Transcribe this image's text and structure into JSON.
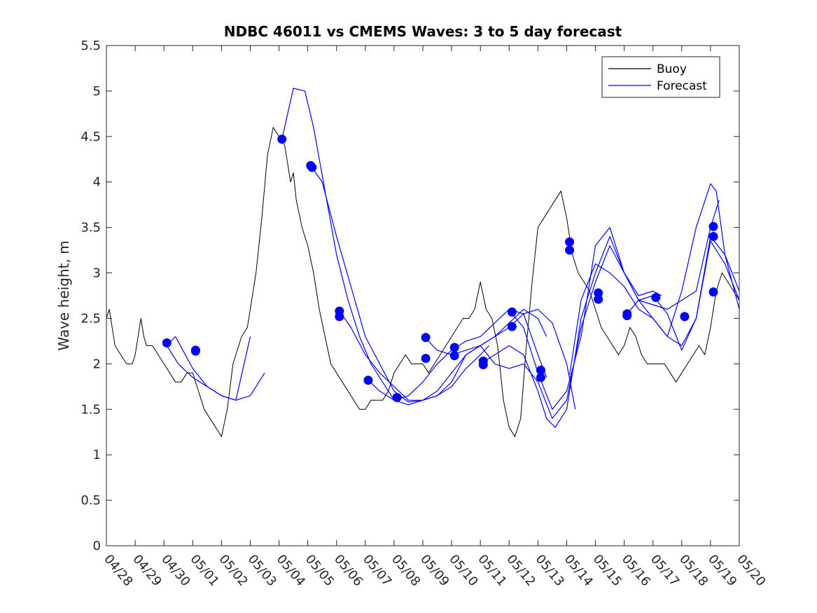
{
  "chart_data": {
    "type": "line",
    "title": "NDBC 46011 vs CMEMS Waves: 3 to 5 day forecast",
    "xlabel": "",
    "ylabel": "Wave height, m",
    "xlim": [
      "04/28",
      "05/20"
    ],
    "ylim": [
      0,
      5.5
    ],
    "x_tick_labels": [
      "04/28",
      "04/29",
      "04/30",
      "05/01",
      "05/02",
      "05/03",
      "05/04",
      "05/05",
      "05/06",
      "05/07",
      "05/08",
      "05/09",
      "05/10",
      "05/11",
      "05/12",
      "05/13",
      "05/14",
      "05/15",
      "05/16",
      "05/17",
      "05/18",
      "05/19",
      "05/20"
    ],
    "y_ticks": [
      0,
      0.5,
      1,
      1.5,
      2,
      2.5,
      3,
      3.5,
      4,
      4.5,
      5,
      5.5
    ],
    "y_tick_labels": [
      "0",
      "0.5",
      "1",
      "1.5",
      "2",
      "2.5",
      "3",
      "3.5",
      "4",
      "4.5",
      "5",
      "5.5"
    ],
    "grid": false,
    "legend_position": "top-right",
    "colors": {
      "buoy": "#000000",
      "forecast": "#0000ff"
    },
    "series": [
      {
        "name": "Buoy",
        "kind": "line",
        "x": [
          0,
          0.1,
          0.2,
          0.3,
          0.5,
          0.7,
          0.9,
          1.0,
          1.1,
          1.2,
          1.3,
          1.4,
          1.6,
          1.8,
          2.0,
          2.2,
          2.4,
          2.6,
          2.8,
          3.0,
          3.2,
          3.4,
          3.6,
          3.8,
          4.0,
          4.2,
          4.4,
          4.6,
          4.7,
          4.9,
          5.0,
          5.2,
          5.4,
          5.6,
          5.8,
          6.0,
          6.2,
          6.4,
          6.5,
          6.6,
          6.8,
          7.0,
          7.2,
          7.4,
          7.6,
          7.8,
          8.0,
          8.2,
          8.4,
          8.6,
          8.8,
          9.0,
          9.2,
          9.4,
          9.6,
          9.8,
          10.0,
          10.2,
          10.4,
          10.6,
          10.8,
          11.0,
          11.2,
          11.4,
          11.6,
          11.8,
          12.0,
          12.2,
          12.4,
          12.6,
          12.8,
          13.0,
          13.2,
          13.4,
          13.6,
          13.8,
          14.0,
          14.2,
          14.4,
          14.6,
          14.8,
          15.0,
          15.2,
          15.4,
          15.6,
          15.8,
          16.0,
          16.2,
          16.4,
          16.6,
          16.8,
          17.0,
          17.2,
          17.4,
          17.6,
          17.8,
          18.0,
          18.2,
          18.4,
          18.6,
          18.8,
          19.0,
          19.2,
          19.4,
          19.6,
          19.8,
          20.0,
          20.2,
          20.4,
          20.6,
          20.8,
          21.0,
          21.1,
          21.2,
          21.4,
          21.6,
          21.8,
          22.0
        ],
        "y": [
          2.5,
          2.6,
          2.4,
          2.2,
          2.1,
          2.0,
          2.0,
          2.1,
          2.3,
          2.5,
          2.3,
          2.2,
          2.2,
          2.1,
          2.0,
          1.9,
          1.8,
          1.8,
          1.9,
          1.9,
          1.7,
          1.5,
          1.4,
          1.3,
          1.2,
          1.5,
          2.0,
          2.2,
          2.3,
          2.4,
          2.6,
          3.0,
          3.6,
          4.3,
          4.6,
          4.5,
          4.4,
          4.0,
          4.1,
          3.8,
          3.5,
          3.3,
          3.0,
          2.6,
          2.3,
          2.0,
          1.9,
          1.8,
          1.7,
          1.6,
          1.5,
          1.5,
          1.6,
          1.6,
          1.6,
          1.7,
          1.9,
          2.0,
          2.1,
          2.0,
          2.0,
          2.0,
          1.9,
          2.0,
          2.1,
          2.2,
          2.3,
          2.4,
          2.5,
          2.5,
          2.6,
          2.9,
          2.6,
          2.5,
          2.2,
          1.6,
          1.3,
          1.2,
          1.4,
          2.2,
          2.9,
          3.5,
          3.6,
          3.7,
          3.8,
          3.9,
          3.6,
          3.2,
          3.0,
          2.9,
          2.8,
          2.6,
          2.4,
          2.3,
          2.2,
          2.1,
          2.2,
          2.4,
          2.3,
          2.1,
          2.0,
          2.0,
          2.0,
          2.0,
          1.9,
          1.8,
          1.9,
          2.0,
          2.1,
          2.2,
          2.1,
          2.4,
          2.6,
          2.8,
          3.0,
          2.9,
          2.8,
          2.7
        ]
      },
      {
        "name": "Forecast",
        "kind": "line",
        "x": [
          2.0,
          2.5,
          3.0,
          3.5,
          4.0,
          4.5,
          5.0,
          5.5
        ],
        "y": [
          2.25,
          2.0,
          1.85,
          1.75,
          1.65,
          1.6,
          1.65,
          1.9
        ]
      },
      {
        "name": "",
        "kind": "line",
        "x": [
          2.1,
          2.4,
          3.0,
          3.5,
          4.0,
          4.5,
          5.0
        ],
        "y": [
          2.2,
          2.3,
          1.95,
          1.75,
          1.65,
          1.6,
          2.3
        ]
      },
      {
        "name": "",
        "kind": "line",
        "x": [
          6.1,
          6.5,
          6.9,
          7.2,
          7.6,
          8.0,
          8.4,
          8.8,
          9.2,
          9.6,
          10.0,
          10.5,
          11.0,
          11.5,
          12.0,
          12.5,
          13.0,
          13.3
        ],
        "y": [
          4.47,
          5.03,
          5.0,
          4.6,
          3.9,
          3.2,
          2.7,
          2.3,
          2.0,
          1.8,
          1.6,
          1.55,
          1.6,
          1.65,
          1.75,
          1.95,
          2.1,
          2.2
        ]
      },
      {
        "name": "",
        "kind": "line",
        "x": [
          7.1,
          7.5,
          8.0,
          8.5,
          9.0,
          9.5,
          10.0,
          10.5,
          11.0,
          11.5,
          12.0,
          12.5,
          13.0,
          13.5,
          14.0,
          14.5,
          15.0,
          15.3
        ],
        "y": [
          4.18,
          4.0,
          3.4,
          2.85,
          2.3,
          2.0,
          1.7,
          1.58,
          1.6,
          1.65,
          1.8,
          2.1,
          2.2,
          2.3,
          2.45,
          2.6,
          2.5,
          2.3
        ]
      },
      {
        "name": "",
        "kind": "line",
        "x": [
          8.1,
          8.5,
          9.0,
          9.5,
          10.0,
          10.5,
          11.0,
          11.5,
          12.0,
          12.5,
          13.0,
          13.5,
          14.0,
          14.5,
          15.0,
          15.5,
          16.0,
          16.3
        ],
        "y": [
          2.58,
          2.4,
          2.1,
          1.9,
          1.75,
          1.6,
          1.6,
          1.7,
          1.9,
          2.1,
          2.2,
          2.3,
          2.4,
          2.55,
          2.6,
          2.45,
          2.0,
          1.5
        ]
      },
      {
        "name": "",
        "kind": "line",
        "x": [
          9.1,
          9.5,
          10.0,
          10.5,
          11.0,
          11.5,
          12.0,
          12.5,
          13.0,
          13.5,
          14.0,
          14.5,
          15.0,
          15.3
        ],
        "y": [
          1.82,
          1.7,
          1.6,
          1.65,
          1.8,
          2.0,
          2.15,
          2.25,
          2.3,
          2.45,
          2.6,
          2.55,
          2.1,
          1.85
        ]
      },
      {
        "name": "",
        "kind": "line",
        "x": [
          11.1,
          11.5,
          12.0,
          12.5,
          13.0,
          13.5,
          14.0,
          14.5,
          15.0,
          15.5,
          16.0,
          16.5,
          17.0,
          17.5,
          18.0,
          18.5,
          19.0,
          19.3
        ],
        "y": [
          2.28,
          2.15,
          2.1,
          2.15,
          2.2,
          2.0,
          1.95,
          2.0,
          1.8,
          1.4,
          1.6,
          2.4,
          2.9,
          3.3,
          3.0,
          2.75,
          2.8,
          2.75
        ]
      },
      {
        "name": "",
        "kind": "line",
        "x": [
          13.1,
          13.5,
          14.0,
          14.5,
          15.0,
          15.3,
          15.6,
          16.0,
          16.5,
          17.0,
          17.5,
          18.0,
          18.5,
          19.0,
          19.5,
          20.0,
          20.5,
          21.0,
          21.3
        ],
        "y": [
          2.02,
          2.1,
          2.2,
          2.1,
          1.7,
          1.4,
          1.3,
          1.5,
          2.5,
          3.0,
          3.4,
          3.0,
          2.7,
          2.65,
          2.6,
          2.7,
          2.8,
          3.5,
          3.8
        ]
      },
      {
        "name": "",
        "kind": "line",
        "x": [
          14.1,
          14.5,
          15.0,
          15.5,
          16.0,
          16.5,
          17.0,
          17.5,
          18.0,
          18.5,
          19.0,
          19.5,
          20.0,
          20.5,
          21.0,
          21.5,
          22.0
        ],
        "y": [
          2.55,
          2.4,
          1.9,
          1.5,
          1.7,
          2.3,
          3.3,
          3.5,
          3.0,
          2.7,
          2.5,
          2.3,
          2.2,
          2.5,
          3.4,
          3.2,
          2.8
        ]
      },
      {
        "name": "",
        "kind": "line",
        "x": [
          16.1,
          16.5,
          17.0,
          17.5,
          18.0,
          18.5,
          19.0,
          19.5,
          20.0,
          20.5,
          21.0,
          21.2,
          21.5,
          22.0
        ],
        "y": [
          1.88,
          2.7,
          3.1,
          3.0,
          2.85,
          2.6,
          2.5,
          2.3,
          2.8,
          3.5,
          3.98,
          3.9,
          3.2,
          2.6
        ]
      },
      {
        "name": "",
        "kind": "line",
        "x": [
          18.1,
          18.5,
          19.0,
          19.5,
          20.0,
          20.5,
          21.0,
          21.5,
          22.0
        ],
        "y": [
          2.55,
          2.7,
          2.75,
          2.55,
          2.15,
          2.5,
          3.35,
          3.1,
          2.7
        ]
      },
      {
        "name": "",
        "kind": "scatter",
        "x": [
          2.1,
          3.1,
          3.1,
          6.1,
          7.1,
          7.15,
          8.1,
          8.1,
          9.1,
          10.1,
          11.1,
          11.1,
          12.1,
          12.1,
          13.1,
          13.1,
          14.1,
          14.1,
          15.1,
          15.1,
          16.1,
          16.1,
          17.1,
          17.1,
          18.1,
          18.1,
          19.1,
          20.1,
          21.1,
          21.1
        ],
        "y": [
          2.23,
          2.14,
          2.15,
          4.47,
          4.18,
          4.16,
          2.58,
          2.52,
          1.82,
          1.63,
          2.29,
          2.06,
          2.18,
          2.09,
          2.03,
          1.99,
          2.57,
          2.41,
          1.93,
          1.85,
          3.34,
          3.25,
          2.78,
          2.71,
          2.55,
          2.53,
          2.73,
          2.52,
          2.79,
          3.4
        ]
      }
    ],
    "extra_points_series": {
      "x": [
        21.1
      ],
      "y": [
        3.51
      ]
    },
    "legend": {
      "entries": [
        "Buoy",
        "Forecast"
      ]
    }
  }
}
